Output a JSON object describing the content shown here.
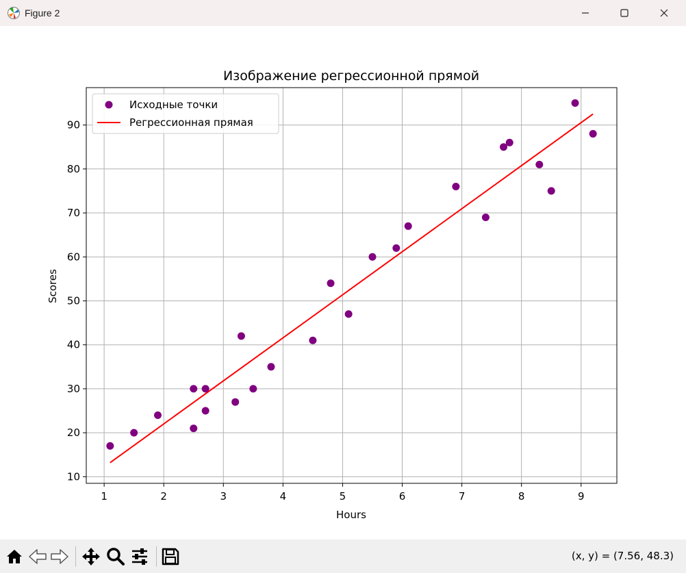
{
  "window": {
    "title": "Figure 2",
    "app_icon": "matplotlib-icon",
    "controls": [
      "minimize-icon",
      "maximize-icon",
      "close-icon"
    ]
  },
  "toolbar": {
    "buttons": [
      "home-icon",
      "back-icon",
      "forward-icon",
      "pan-icon",
      "zoom-icon",
      "configure-subplots-icon",
      "save-icon"
    ],
    "coords_text": "(x, y) = (7.56, 48.3)"
  },
  "chart_data": {
    "type": "scatter",
    "title": "Изображение регрессионной прямой",
    "xlabel": "Hours",
    "ylabel": "Scores",
    "xlim": [
      0.7,
      9.6
    ],
    "ylim": [
      8.5,
      98.5
    ],
    "xticks": [
      1,
      2,
      3,
      4,
      5,
      6,
      7,
      8,
      9
    ],
    "yticks": [
      10,
      20,
      30,
      40,
      50,
      60,
      70,
      80,
      90
    ],
    "grid": true,
    "legend_position": "top-left",
    "series": [
      {
        "name": "Исходные точки",
        "kind": "scatter",
        "color": "#800080",
        "points": [
          [
            1.1,
            17
          ],
          [
            1.5,
            20
          ],
          [
            1.9,
            24
          ],
          [
            2.5,
            21
          ],
          [
            2.5,
            30
          ],
          [
            2.7,
            25
          ],
          [
            2.7,
            30
          ],
          [
            3.2,
            27
          ],
          [
            3.3,
            42
          ],
          [
            3.5,
            30
          ],
          [
            3.8,
            35
          ],
          [
            4.5,
            41
          ],
          [
            4.8,
            54
          ],
          [
            5.1,
            47
          ],
          [
            5.5,
            60
          ],
          [
            5.9,
            62
          ],
          [
            6.1,
            67
          ],
          [
            6.9,
            76
          ],
          [
            7.4,
            69
          ],
          [
            7.7,
            85
          ],
          [
            7.8,
            86
          ],
          [
            8.3,
            81
          ],
          [
            8.5,
            75
          ],
          [
            8.9,
            95
          ],
          [
            9.2,
            88
          ]
        ]
      },
      {
        "name": "Регрессионная прямая",
        "kind": "line",
        "color": "#ff0000",
        "points": [
          [
            1.1,
            13.2
          ],
          [
            9.2,
            92.5
          ]
        ]
      }
    ]
  }
}
